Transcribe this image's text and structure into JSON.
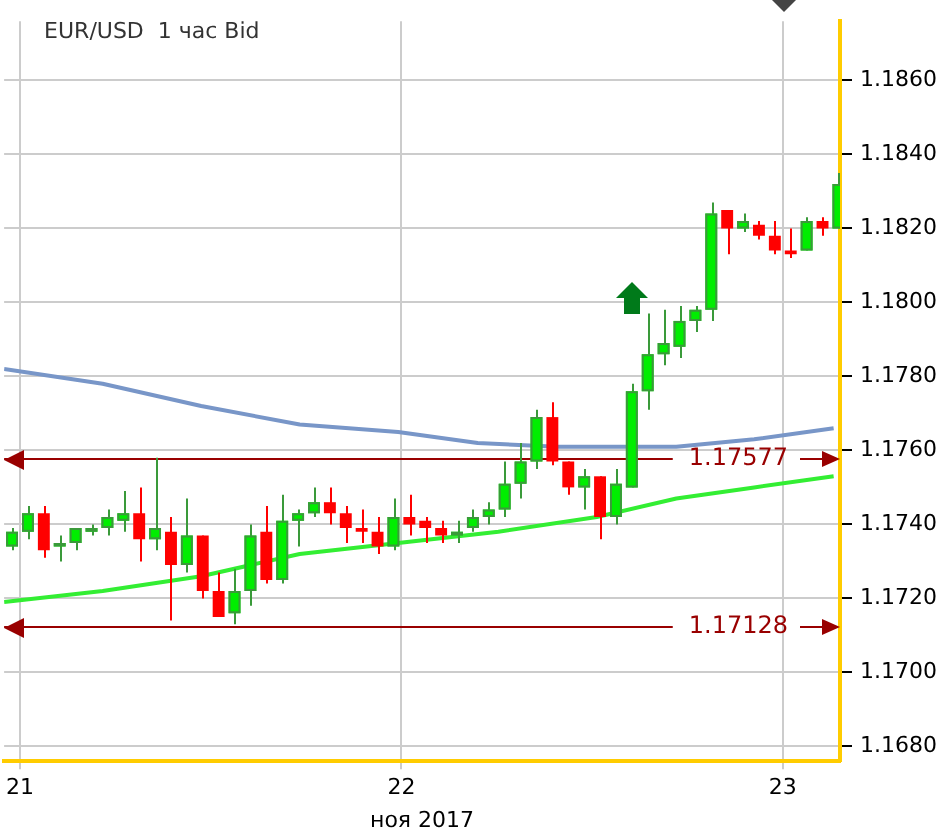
{
  "chart_data": {
    "type": "candlestick",
    "title": "EUR/USD  1 час Bid",
    "xlabel": "ноя 2017",
    "x": [
      "2017-11-20T23:30",
      "2017-11-21T00:30",
      "2017-11-21T01:30",
      "2017-11-21T02:30",
      "2017-11-21T03:30",
      "2017-11-21T04:30",
      "2017-11-21T05:30",
      "2017-11-21T06:30",
      "2017-11-21T07:30",
      "2017-11-21T08:30",
      "2017-11-21T09:30",
      "2017-11-21T10:30",
      "2017-11-21T11:30",
      "2017-11-21T12:30",
      "2017-11-21T13:30",
      "2017-11-21T14:30",
      "2017-11-21T15:30",
      "2017-11-21T16:30",
      "2017-11-21T17:30",
      "2017-11-21T18:30",
      "2017-11-21T19:30",
      "2017-11-21T20:30",
      "2017-11-21T21:30",
      "2017-11-21T22:30",
      "2017-11-21T23:30",
      "2017-11-22T00:30",
      "2017-11-22T01:30",
      "2017-11-22T02:30",
      "2017-11-22T03:30",
      "2017-11-22T04:30",
      "2017-11-22T05:30",
      "2017-11-22T06:30",
      "2017-11-22T07:30",
      "2017-11-22T08:30",
      "2017-11-22T09:30",
      "2017-11-22T10:30",
      "2017-11-22T11:30",
      "2017-11-22T12:30",
      "2017-11-22T13:30",
      "2017-11-22T14:30",
      "2017-11-22T15:30",
      "2017-11-22T16:30",
      "2017-11-22T17:30",
      "2017-11-22T18:30",
      "2017-11-22T19:30",
      "2017-11-22T20:30",
      "2017-11-22T21:30",
      "2017-11-22T22:30",
      "2017-11-22T23:30",
      "2017-11-23T00:30",
      "2017-11-23T01:30",
      "2017-11-23T02:30",
      "2017-11-23T03:30"
    ],
    "ohlc": [
      [
        1.1734,
        1.1739,
        1.1733,
        1.1738
      ],
      [
        1.1738,
        1.1745,
        1.1736,
        1.1743
      ],
      [
        1.1743,
        1.1745,
        1.1731,
        1.1733
      ],
      [
        1.1734,
        1.1737,
        1.173,
        1.1735
      ],
      [
        1.1735,
        1.1739,
        1.1733,
        1.1739
      ],
      [
        1.1738,
        1.174,
        1.1737,
        1.1739
      ],
      [
        1.1739,
        1.1744,
        1.1737,
        1.1742
      ],
      [
        1.1741,
        1.1749,
        1.1738,
        1.1743
      ],
      [
        1.1743,
        1.175,
        1.173,
        1.1736
      ],
      [
        1.1736,
        1.1758,
        1.1733,
        1.1739
      ],
      [
        1.1738,
        1.1742,
        1.1714,
        1.1729
      ],
      [
        1.1729,
        1.1747,
        1.1727,
        1.1737
      ],
      [
        1.1737,
        1.1737,
        1.172,
        1.1722
      ],
      [
        1.1722,
        1.1727,
        1.1715,
        1.1715
      ],
      [
        1.1716,
        1.1728,
        1.1713,
        1.1722
      ],
      [
        1.1722,
        1.174,
        1.1718,
        1.1737
      ],
      [
        1.1738,
        1.1745,
        1.1724,
        1.1725
      ],
      [
        1.1725,
        1.1748,
        1.1724,
        1.1741
      ],
      [
        1.1741,
        1.1744,
        1.1734,
        1.1743
      ],
      [
        1.1743,
        1.175,
        1.1742,
        1.1746
      ],
      [
        1.1746,
        1.175,
        1.174,
        1.1743
      ],
      [
        1.1743,
        1.1745,
        1.1735,
        1.1739
      ],
      [
        1.1739,
        1.1744,
        1.1735,
        1.1738
      ],
      [
        1.1738,
        1.1742,
        1.1732,
        1.1734
      ],
      [
        1.1734,
        1.1747,
        1.1733,
        1.1742
      ],
      [
        1.1742,
        1.1748,
        1.1737,
        1.174
      ],
      [
        1.1741,
        1.1742,
        1.1735,
        1.1739
      ],
      [
        1.1739,
        1.1741,
        1.1735,
        1.1737
      ],
      [
        1.1737,
        1.1741,
        1.1735,
        1.1738
      ],
      [
        1.1739,
        1.1744,
        1.1738,
        1.1742
      ],
      [
        1.1742,
        1.1746,
        1.174,
        1.1744
      ],
      [
        1.1744,
        1.1757,
        1.1742,
        1.1751
      ],
      [
        1.1751,
        1.1762,
        1.1747,
        1.1757
      ],
      [
        1.1757,
        1.1771,
        1.1755,
        1.1769
      ],
      [
        1.1769,
        1.1773,
        1.1756,
        1.1757
      ],
      [
        1.1757,
        1.1757,
        1.1748,
        1.175
      ],
      [
        1.175,
        1.1755,
        1.1744,
        1.1753
      ],
      [
        1.1753,
        1.1753,
        1.1736,
        1.1742
      ],
      [
        1.1742,
        1.1755,
        1.174,
        1.1751
      ],
      [
        1.175,
        1.1778,
        1.175,
        1.1776
      ],
      [
        1.1776,
        1.1797,
        1.1771,
        1.1786
      ],
      [
        1.1786,
        1.1798,
        1.1783,
        1.1789
      ],
      [
        1.1788,
        1.1799,
        1.1785,
        1.1795
      ],
      [
        1.1795,
        1.1799,
        1.1792,
        1.1798
      ],
      [
        1.1798,
        1.1827,
        1.1795,
        1.1824
      ],
      [
        1.1825,
        1.1825,
        1.1813,
        1.182
      ],
      [
        1.182,
        1.1824,
        1.1819,
        1.1822
      ],
      [
        1.1821,
        1.1822,
        1.1817,
        1.1818
      ],
      [
        1.1818,
        1.1822,
        1.1813,
        1.1814
      ],
      [
        1.1814,
        1.182,
        1.1812,
        1.1813
      ],
      [
        1.1814,
        1.1823,
        1.1814,
        1.1822
      ],
      [
        1.1822,
        1.1823,
        1.1818,
        1.182
      ],
      [
        1.182,
        1.1835,
        1.182,
        1.1832
      ]
    ],
    "colors": [
      "#00ee00",
      "#00ee00",
      "#ff0000",
      "#00ee00",
      "#00ee00",
      "#00ee00",
      "#00ee00",
      "#00ee00",
      "#ff0000",
      "#00ee00",
      "#ff0000",
      "#00ee00",
      "#ff0000",
      "#ff0000",
      "#00ee00",
      "#00ee00",
      "#ff0000",
      "#00ee00",
      "#00ee00",
      "#00ee00",
      "#ff0000",
      "#ff0000",
      "#ff0000",
      "#ff0000",
      "#00ee00",
      "#ff0000",
      "#ff0000",
      "#ff0000",
      "#00ee00",
      "#00ee00",
      "#00ee00",
      "#00ee00",
      "#00ee00",
      "#00ee00",
      "#ff0000",
      "#ff0000",
      "#00ee00",
      "#ff0000",
      "#00ee00",
      "#00ee00",
      "#00ee00",
      "#00ee00",
      "#00ee00",
      "#00ee00",
      "#00ee00",
      "#ff0000",
      "#00ee00",
      "#ff0000",
      "#ff0000",
      "#ff0000",
      "#00ee00",
      "#ff0000",
      "#00ee00"
    ],
    "series": [
      {
        "type": "line",
        "color": "#7896c8",
        "x": [
          "2017-11-20T23:00",
          "2017-11-21T05:12",
          "2017-11-21T11:24",
          "2017-11-21T17:36",
          "2017-11-21T23:48",
          "2017-11-22T04:48",
          "2017-11-22T09:48",
          "2017-11-22T12:18",
          "2017-11-22T17:18",
          "2017-11-22T22:12",
          "2017-11-23T03:12"
        ],
        "values": [
          1.1782,
          1.1778,
          1.1772,
          1.1767,
          1.1765,
          1.1762,
          1.1761,
          1.1761,
          1.1761,
          1.1763,
          1.1766
        ]
      },
      {
        "type": "line",
        "color": "#33ee33",
        "x": [
          "2017-11-20T23:00",
          "2017-11-21T05:12",
          "2017-11-21T11:24",
          "2017-11-21T17:36",
          "2017-11-21T23:48",
          "2017-11-22T06:06",
          "2017-11-22T12:18",
          "2017-11-22T17:18",
          "2017-11-22T22:12",
          "2017-11-23T03:12"
        ],
        "values": [
          1.1719,
          1.1722,
          1.1726,
          1.1732,
          1.1735,
          1.1738,
          1.1742,
          1.1747,
          1.175,
          1.1753
        ]
      }
    ],
    "ref_lines": [
      {
        "axis": "y",
        "value": 1.17577,
        "label": "1.17577",
        "color": "#990000"
      },
      {
        "axis": "y",
        "value": 1.17128,
        "label": "1.17128",
        "color": "#990000"
      }
    ],
    "xlim": [
      "2017-11-20T23:00",
      "2017-11-23T03:36"
    ],
    "xticks": [
      {
        "value": "2017-11-21",
        "label": "21"
      },
      {
        "value": "2017-11-22",
        "label": "22"
      },
      {
        "value": "2017-11-23",
        "label": "23"
      }
    ],
    "ylim": [
      1.1676,
      1.1876
    ],
    "yticks": [
      {
        "value": 1.168,
        "label": "1.1680"
      },
      {
        "value": 1.17,
        "label": "1.1700"
      },
      {
        "value": 1.172,
        "label": "1.1720"
      },
      {
        "value": 1.174,
        "label": "1.1740"
      },
      {
        "value": 1.176,
        "label": "1.1760"
      },
      {
        "value": 1.178,
        "label": "1.1780"
      },
      {
        "value": 1.18,
        "label": "1.1800"
      },
      {
        "value": 1.182,
        "label": "1.1820"
      },
      {
        "value": 1.184,
        "label": "1.1840"
      },
      {
        "value": 1.186,
        "label": "1.1860"
      }
    ],
    "grid": true,
    "legend": false,
    "marker": "none",
    "line_style": "solid"
  }
}
